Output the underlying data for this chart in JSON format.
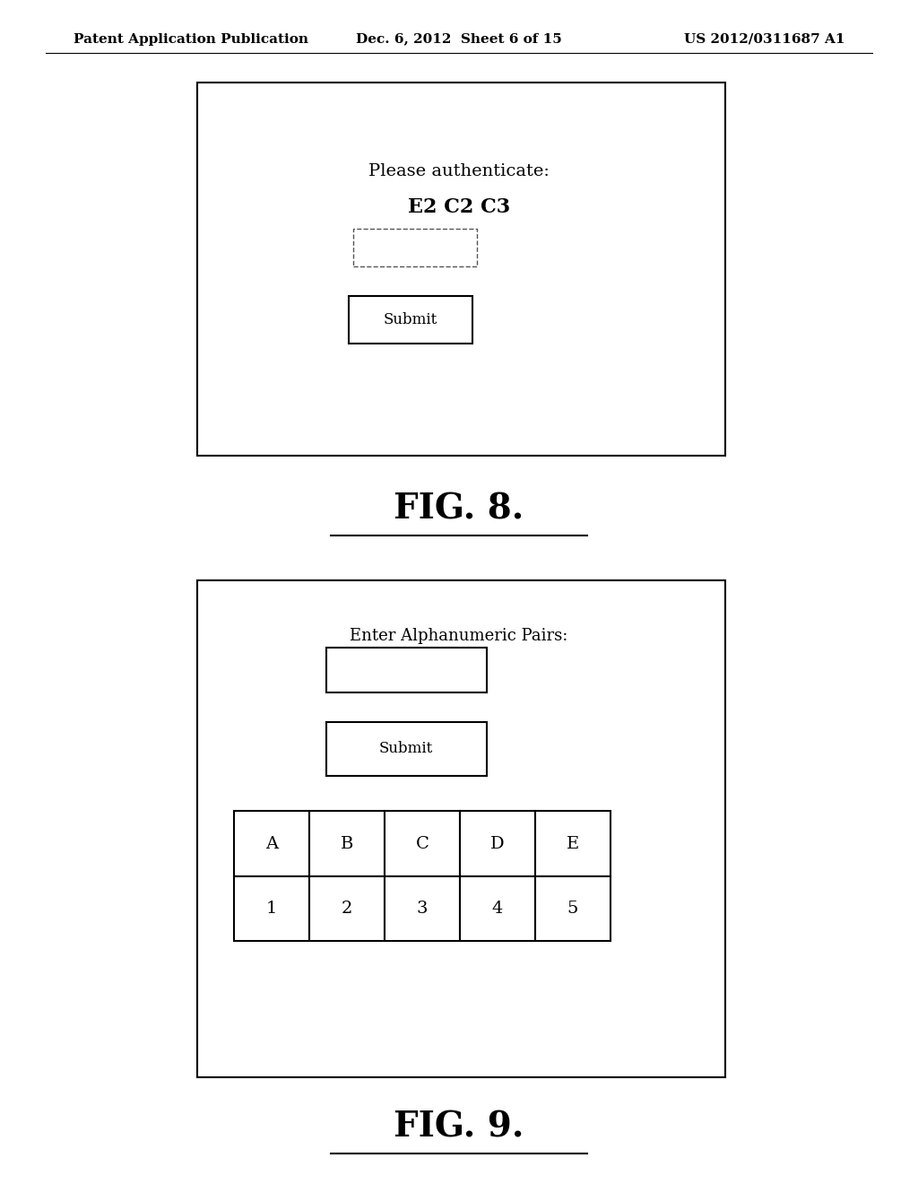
{
  "background_color": "#ffffff",
  "header_left": "Patent Application Publication",
  "header_center": "Dec. 6, 2012  Sheet 6 of 15",
  "header_right": "US 2012/0311687 A1",
  "header_fontsize": 11,
  "fig8_title": "FIG. 8.",
  "fig9_title": "FIG. 9.",
  "fig_title_fontsize": 28,
  "fig8_text1": "Please authenticate:",
  "fig8_text2": "E2 C2 C3",
  "fig8_submit": "Submit",
  "fig9_text1": "Enter Alphanumeric Pairs:",
  "fig9_submit": "Submit",
  "fig9_table_row1": [
    "A",
    "B",
    "C",
    "D",
    "E"
  ],
  "fig9_table_row2": [
    "1",
    "2",
    "3",
    "4",
    "5"
  ],
  "content_fontsize": 13,
  "submit_fontsize": 12
}
